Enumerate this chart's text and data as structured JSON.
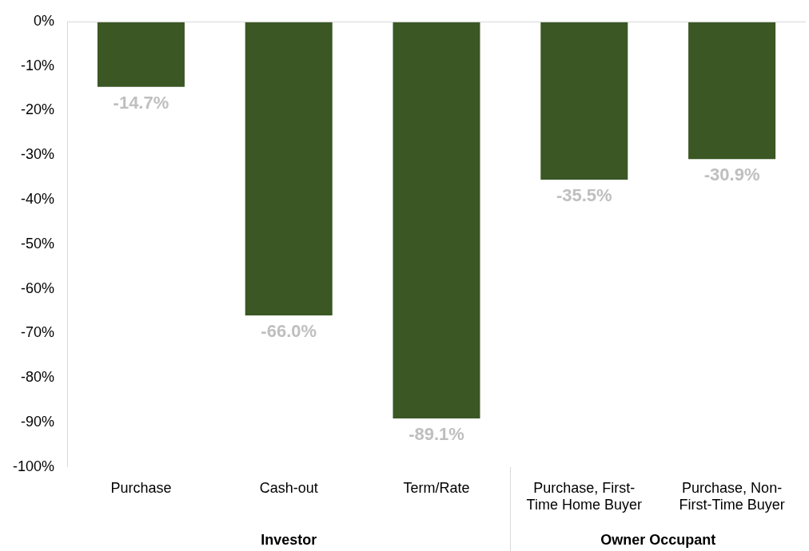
{
  "chart_data": {
    "type": "bar",
    "categories": [
      "Purchase",
      "Cash-out",
      "Term/Rate",
      "Purchase, First-Time Home Buyer",
      "Purchase, Non-First-Time Buyer"
    ],
    "values": [
      -14.7,
      -66.0,
      -89.1,
      -35.5,
      -30.9
    ],
    "value_labels": [
      "-14.7%",
      "-66.0%",
      "-89.1%",
      "-35.5%",
      "-30.9%"
    ],
    "color": "#3a5724",
    "ylim": [
      -100,
      0
    ],
    "yticks": [
      {
        "value": 0,
        "label": "0%"
      },
      {
        "value": -10,
        "label": "-10%"
      },
      {
        "value": -20,
        "label": "-20%"
      },
      {
        "value": -30,
        "label": "-30%"
      },
      {
        "value": -40,
        "label": "-40%"
      },
      {
        "value": -50,
        "label": "-50%"
      },
      {
        "value": -60,
        "label": "-60%"
      },
      {
        "value": -70,
        "label": "-70%"
      },
      {
        "value": -80,
        "label": "-80%"
      },
      {
        "value": -90,
        "label": "-90%"
      },
      {
        "value": -100,
        "label": "-100%"
      }
    ],
    "annotations": [
      "Investor",
      "Owner Occupant"
    ],
    "grid": false,
    "legend": false
  }
}
